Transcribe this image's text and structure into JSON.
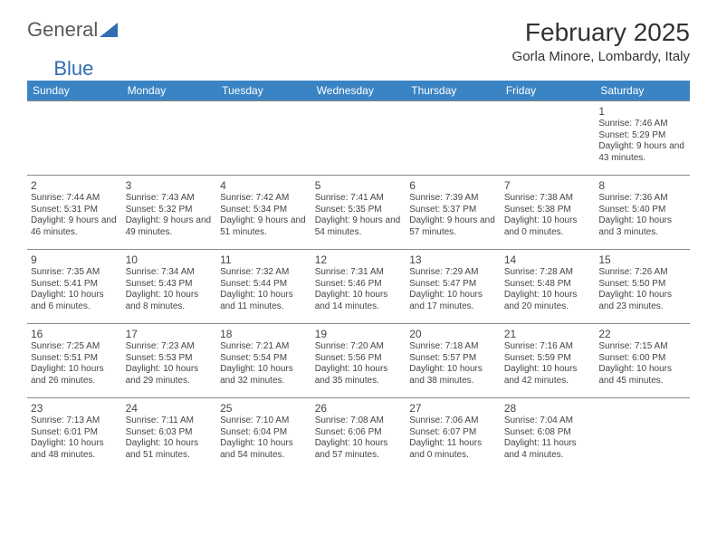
{
  "logo": {
    "text1": "General",
    "text2": "Blue"
  },
  "title": "February 2025",
  "location": "Gorla Minore, Lombardy, Italy",
  "colors": {
    "header_bg": "#3b84c4",
    "header_text": "#ffffff",
    "row_border": "#888888",
    "logo_blue": "#2f6fb0",
    "text": "#333333"
  },
  "day_names": [
    "Sunday",
    "Monday",
    "Tuesday",
    "Wednesday",
    "Thursday",
    "Friday",
    "Saturday"
  ],
  "weeks": [
    [
      null,
      null,
      null,
      null,
      null,
      null,
      {
        "d": "1",
        "sr": "Sunrise: 7:46 AM",
        "ss": "Sunset: 5:29 PM",
        "dl": "Daylight: 9 hours and 43 minutes."
      }
    ],
    [
      {
        "d": "2",
        "sr": "Sunrise: 7:44 AM",
        "ss": "Sunset: 5:31 PM",
        "dl": "Daylight: 9 hours and 46 minutes."
      },
      {
        "d": "3",
        "sr": "Sunrise: 7:43 AM",
        "ss": "Sunset: 5:32 PM",
        "dl": "Daylight: 9 hours and 49 minutes."
      },
      {
        "d": "4",
        "sr": "Sunrise: 7:42 AM",
        "ss": "Sunset: 5:34 PM",
        "dl": "Daylight: 9 hours and 51 minutes."
      },
      {
        "d": "5",
        "sr": "Sunrise: 7:41 AM",
        "ss": "Sunset: 5:35 PM",
        "dl": "Daylight: 9 hours and 54 minutes."
      },
      {
        "d": "6",
        "sr": "Sunrise: 7:39 AM",
        "ss": "Sunset: 5:37 PM",
        "dl": "Daylight: 9 hours and 57 minutes."
      },
      {
        "d": "7",
        "sr": "Sunrise: 7:38 AM",
        "ss": "Sunset: 5:38 PM",
        "dl": "Daylight: 10 hours and 0 minutes."
      },
      {
        "d": "8",
        "sr": "Sunrise: 7:36 AM",
        "ss": "Sunset: 5:40 PM",
        "dl": "Daylight: 10 hours and 3 minutes."
      }
    ],
    [
      {
        "d": "9",
        "sr": "Sunrise: 7:35 AM",
        "ss": "Sunset: 5:41 PM",
        "dl": "Daylight: 10 hours and 6 minutes."
      },
      {
        "d": "10",
        "sr": "Sunrise: 7:34 AM",
        "ss": "Sunset: 5:43 PM",
        "dl": "Daylight: 10 hours and 8 minutes."
      },
      {
        "d": "11",
        "sr": "Sunrise: 7:32 AM",
        "ss": "Sunset: 5:44 PM",
        "dl": "Daylight: 10 hours and 11 minutes."
      },
      {
        "d": "12",
        "sr": "Sunrise: 7:31 AM",
        "ss": "Sunset: 5:46 PM",
        "dl": "Daylight: 10 hours and 14 minutes."
      },
      {
        "d": "13",
        "sr": "Sunrise: 7:29 AM",
        "ss": "Sunset: 5:47 PM",
        "dl": "Daylight: 10 hours and 17 minutes."
      },
      {
        "d": "14",
        "sr": "Sunrise: 7:28 AM",
        "ss": "Sunset: 5:48 PM",
        "dl": "Daylight: 10 hours and 20 minutes."
      },
      {
        "d": "15",
        "sr": "Sunrise: 7:26 AM",
        "ss": "Sunset: 5:50 PM",
        "dl": "Daylight: 10 hours and 23 minutes."
      }
    ],
    [
      {
        "d": "16",
        "sr": "Sunrise: 7:25 AM",
        "ss": "Sunset: 5:51 PM",
        "dl": "Daylight: 10 hours and 26 minutes."
      },
      {
        "d": "17",
        "sr": "Sunrise: 7:23 AM",
        "ss": "Sunset: 5:53 PM",
        "dl": "Daylight: 10 hours and 29 minutes."
      },
      {
        "d": "18",
        "sr": "Sunrise: 7:21 AM",
        "ss": "Sunset: 5:54 PM",
        "dl": "Daylight: 10 hours and 32 minutes."
      },
      {
        "d": "19",
        "sr": "Sunrise: 7:20 AM",
        "ss": "Sunset: 5:56 PM",
        "dl": "Daylight: 10 hours and 35 minutes."
      },
      {
        "d": "20",
        "sr": "Sunrise: 7:18 AM",
        "ss": "Sunset: 5:57 PM",
        "dl": "Daylight: 10 hours and 38 minutes."
      },
      {
        "d": "21",
        "sr": "Sunrise: 7:16 AM",
        "ss": "Sunset: 5:59 PM",
        "dl": "Daylight: 10 hours and 42 minutes."
      },
      {
        "d": "22",
        "sr": "Sunrise: 7:15 AM",
        "ss": "Sunset: 6:00 PM",
        "dl": "Daylight: 10 hours and 45 minutes."
      }
    ],
    [
      {
        "d": "23",
        "sr": "Sunrise: 7:13 AM",
        "ss": "Sunset: 6:01 PM",
        "dl": "Daylight: 10 hours and 48 minutes."
      },
      {
        "d": "24",
        "sr": "Sunrise: 7:11 AM",
        "ss": "Sunset: 6:03 PM",
        "dl": "Daylight: 10 hours and 51 minutes."
      },
      {
        "d": "25",
        "sr": "Sunrise: 7:10 AM",
        "ss": "Sunset: 6:04 PM",
        "dl": "Daylight: 10 hours and 54 minutes."
      },
      {
        "d": "26",
        "sr": "Sunrise: 7:08 AM",
        "ss": "Sunset: 6:06 PM",
        "dl": "Daylight: 10 hours and 57 minutes."
      },
      {
        "d": "27",
        "sr": "Sunrise: 7:06 AM",
        "ss": "Sunset: 6:07 PM",
        "dl": "Daylight: 11 hours and 0 minutes."
      },
      {
        "d": "28",
        "sr": "Sunrise: 7:04 AM",
        "ss": "Sunset: 6:08 PM",
        "dl": "Daylight: 11 hours and 4 minutes."
      },
      null
    ]
  ]
}
